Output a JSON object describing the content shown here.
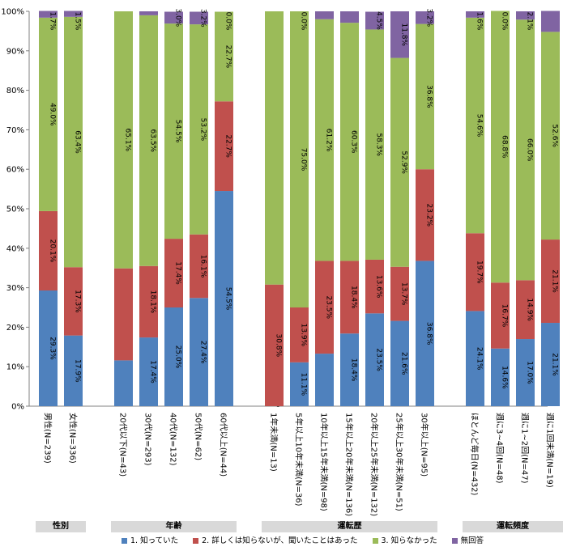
{
  "chart_data": {
    "type": "bar",
    "stacked": true,
    "ylim": [
      0,
      100
    ],
    "yticks": [
      "0%",
      "10%",
      "20%",
      "30%",
      "40%",
      "50%",
      "60%",
      "70%",
      "80%",
      "90%",
      "100%"
    ],
    "groups": [
      {
        "label": "性別",
        "categories": [
          "男性(N=239)",
          "女性(N=336)"
        ]
      },
      {
        "label": "年齢",
        "categories": [
          "20代以下(N=43)",
          "30代(N=293)",
          "40代(N=132)",
          "50代(N=62)",
          "60代以上(N=44)"
        ]
      },
      {
        "label": "運転歴",
        "categories": [
          "1年未満(N=13)",
          "5年以上10年未満(N=36)",
          "10年以上15年未満(N=98)",
          "15年以上20年未満(N=136)",
          "20年以上25年未満(N=132)",
          "25年以上30年未満(N=51)",
          "30年以上(N=95)"
        ]
      },
      {
        "label": "運転頻度",
        "categories": [
          "ほとんど毎日(N=432)",
          "週に3~4回(N=48)",
          "週に1~2回(N=47)",
          "週に1回未満(N=19)"
        ]
      }
    ],
    "series": [
      {
        "name": "1. 知っていた",
        "color": "#4f81bd",
        "values": [
          29.3,
          17.9,
          11.6,
          17.4,
          25.0,
          27.4,
          54.5,
          0.0,
          11.1,
          13.3,
          18.4,
          23.5,
          21.6,
          36.8,
          24.1,
          14.6,
          17.0,
          21.1
        ],
        "labels": [
          "29.3%",
          "17.9%",
          "",
          "17.4%",
          "25.0%",
          "27.4%",
          "54.5%",
          "0.0%",
          "11.1%",
          "",
          "18.4%",
          "23.5%",
          "21.6%",
          "36.8%",
          "24.1%",
          "14.6%",
          "17.0%",
          "21.1%"
        ]
      },
      {
        "name": "2. 詳しくは知らないが、聞いたことはあった",
        "color": "#c0504d",
        "values": [
          20.1,
          17.3,
          23.3,
          18.1,
          17.4,
          16.1,
          22.7,
          30.8,
          13.9,
          23.5,
          18.4,
          13.6,
          13.7,
          23.2,
          19.7,
          16.7,
          14.9,
          21.1
        ],
        "labels": [
          "20.1%",
          "17.3%",
          "",
          "18.1%",
          "17.4%",
          "16.1%",
          "22.7%",
          "30.8%",
          "13.9%",
          "23.5%",
          "18.4%",
          "13.6%",
          "13.7%",
          "23.2%",
          "19.7%",
          "16.7%",
          "14.9%",
          "21.1%"
        ]
      },
      {
        "name": "3. 知らなかった",
        "color": "#9bbb59",
        "values": [
          49.0,
          63.4,
          65.1,
          63.5,
          54.5,
          53.2,
          22.7,
          69.2,
          75.0,
          61.2,
          60.3,
          58.3,
          52.9,
          36.8,
          54.6,
          68.8,
          66.0,
          52.6
        ],
        "labels": [
          "49.0%",
          "63.4%",
          "65.1%",
          "63.5%",
          "54.5%",
          "53.2%",
          "22.7%",
          "",
          "75.0%",
          "61.2%",
          "60.3%",
          "58.3%",
          "52.9%",
          "36.8%",
          "54.6%",
          "68.8%",
          "66.0%",
          "52.6%"
        ]
      },
      {
        "name": "無回答",
        "color": "#8064a2",
        "values": [
          1.7,
          1.5,
          0.0,
          1.0,
          3.0,
          3.2,
          0.0,
          0.0,
          0.0,
          2.0,
          2.9,
          4.5,
          11.8,
          3.2,
          1.6,
          0.0,
          2.1,
          5.3
        ],
        "labels": [
          "1.7%",
          "1.5%",
          "",
          "",
          "3.0%",
          "3.2%",
          "0.0%",
          "",
          "0.0%",
          "",
          "",
          "4.5%",
          "11.8%",
          "3.2%",
          "1.6%",
          "0.0%",
          "2.1%",
          ""
        ]
      }
    ]
  }
}
